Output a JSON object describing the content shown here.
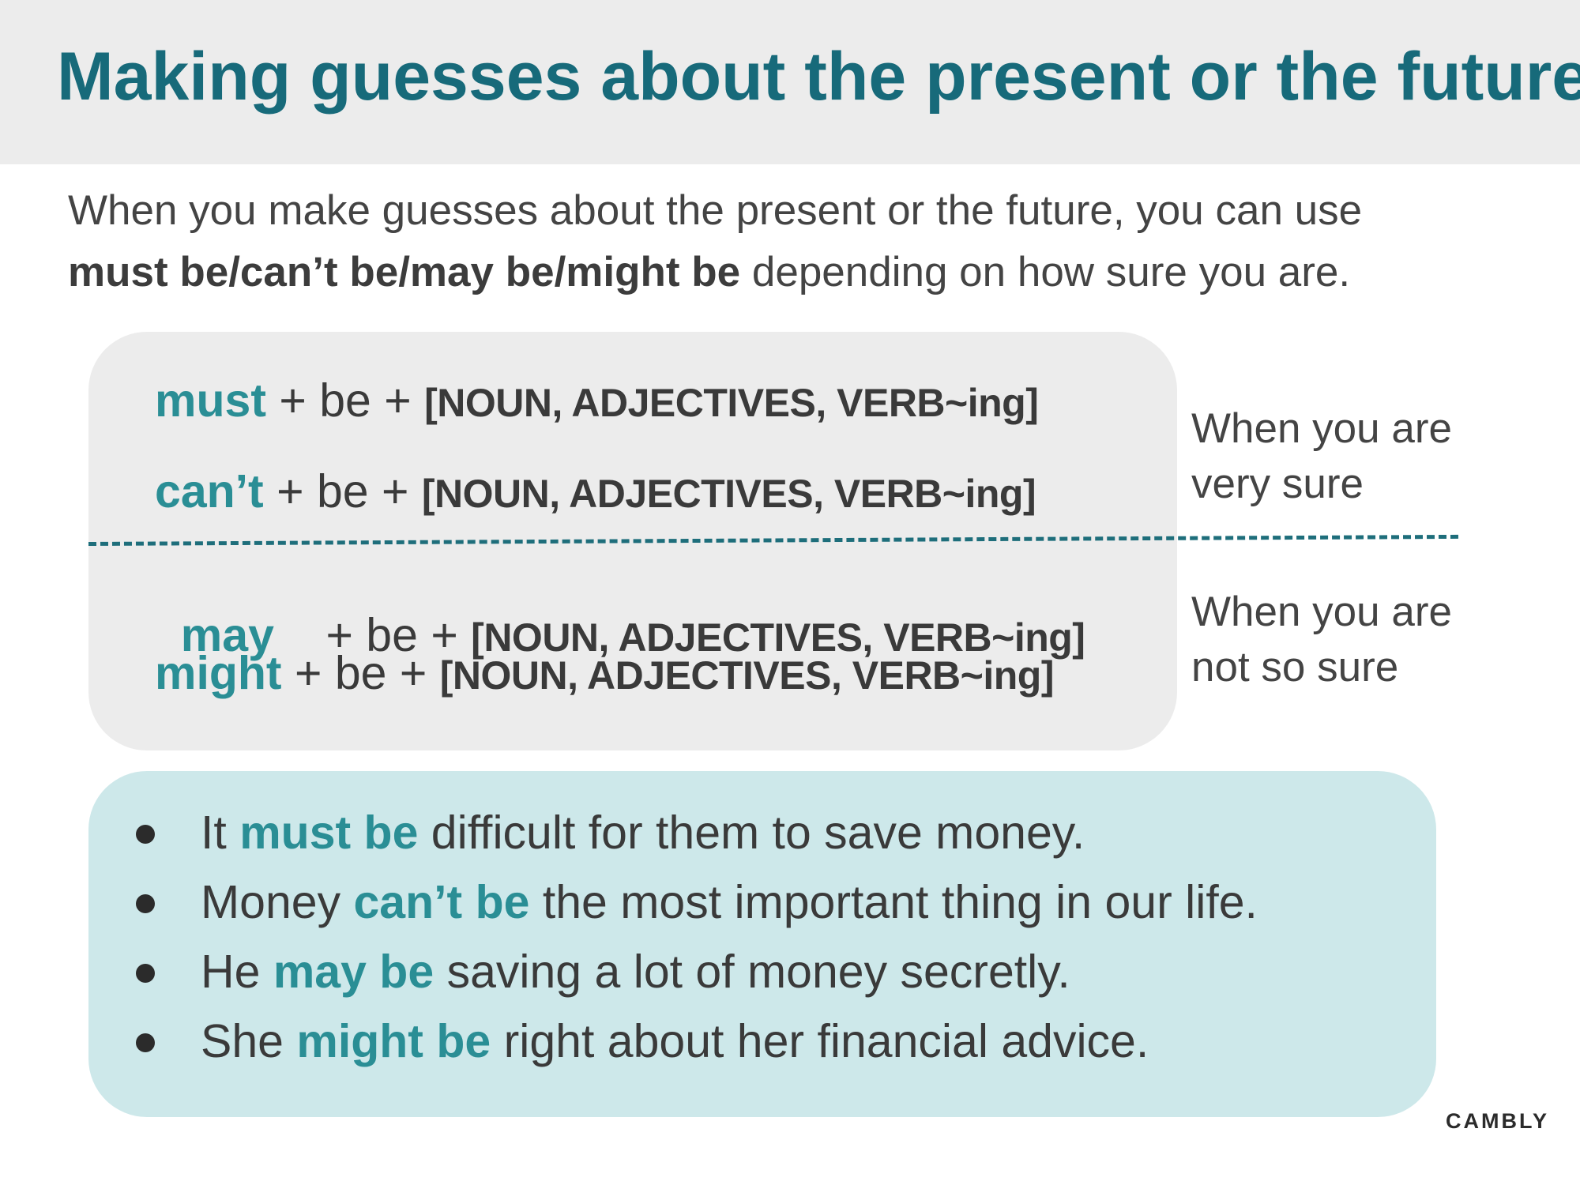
{
  "header": {
    "title": "Making guesses about the present or the future"
  },
  "intro": {
    "line1": "When you make guesses about the present or the future, you can use",
    "bold": "must be/can’t be/may be/might be",
    "rest": " depending on how sure you are."
  },
  "patterns": [
    {
      "modal": "must",
      "join1": " + be + ",
      "slot": "[NOUN, ADJECTIVES, VERB~ing]"
    },
    {
      "modal": "can’t",
      "join1": " + be + ",
      "slot": "[NOUN, ADJECTIVES, VERB~ing]"
    },
    {
      "modal": "may",
      "join1": "    + be + ",
      "slot": "[NOUN, ADJECTIVES, VERB~ing]"
    },
    {
      "modal": "might",
      "join1": " + be + ",
      "slot": "[NOUN, ADJECTIVES, VERB~ing]"
    }
  ],
  "notes": {
    "very_sure": {
      "line1": "When you are",
      "line2": "very sure"
    },
    "not_so_sure": {
      "line1": "When you are",
      "line2": "not so sure"
    }
  },
  "examples": [
    {
      "pre": "It ",
      "highlight": "must be",
      "post": " difficult for them to save money."
    },
    {
      "pre": "Money ",
      "highlight": "can’t be",
      "post": " the most important thing in our life."
    },
    {
      "pre": "He ",
      "highlight": "may be",
      "post": " saving a lot of money secretly."
    },
    {
      "pre": "She ",
      "highlight": "might be",
      "post": " right about her financial advice."
    }
  ],
  "brand": {
    "name": "CAMBLY"
  },
  "colors": {
    "title": "#176a7a",
    "accent": "#2a8e95",
    "header_band": "#ececec",
    "pattern_box": "#ececec",
    "examples_box": "#cde8ea",
    "divider": "#1e6e7b"
  }
}
